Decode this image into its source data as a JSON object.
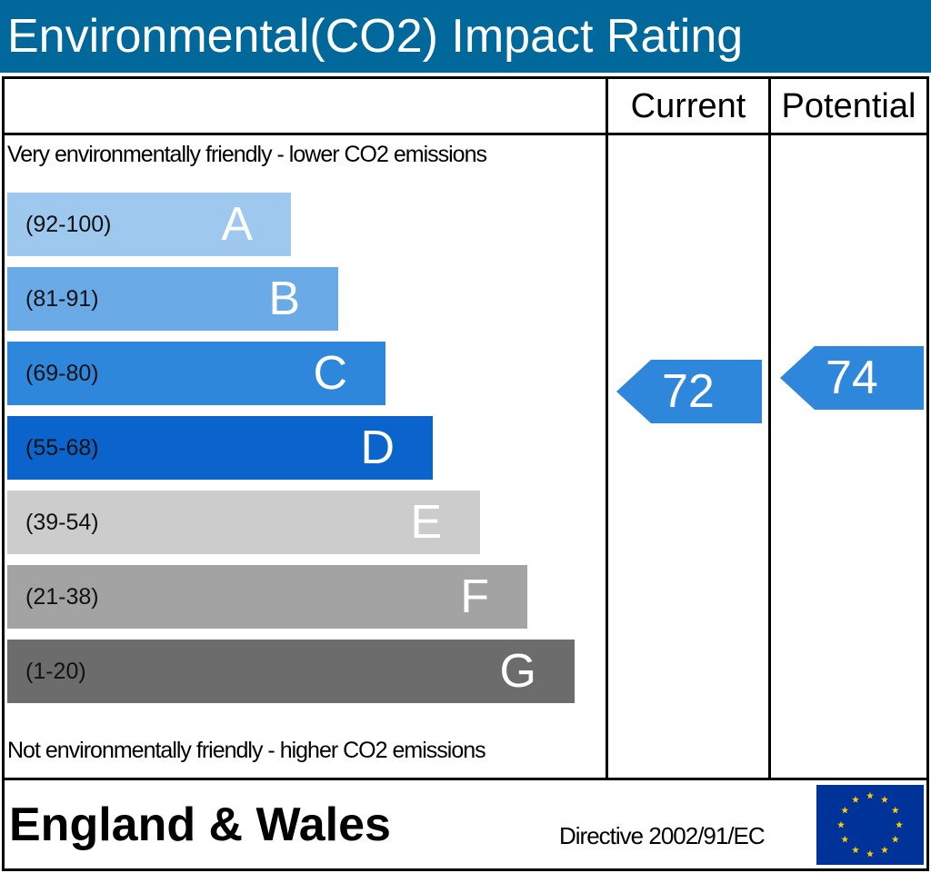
{
  "title": "Environmental(CO2) Impact Rating",
  "header": {
    "current_label": "Current",
    "potential_label": "Potential"
  },
  "notes": {
    "top": "Very environmentally friendly - lower CO2 emissions",
    "bottom": "Not environmentally friendly - higher CO2 emissions"
  },
  "chart_data": {
    "type": "bar",
    "title": "Environmental(CO2) Impact Rating",
    "bands": [
      {
        "letter": "A",
        "range": "(92-100)",
        "color": "#9ec8ee"
      },
      {
        "letter": "B",
        "range": "(81-91)",
        "color": "#6aaae6"
      },
      {
        "letter": "C",
        "range": "(69-80)",
        "color": "#2f87dc"
      },
      {
        "letter": "D",
        "range": "(55-68)",
        "color": "#0a64cc"
      },
      {
        "letter": "E",
        "range": "(39-54)",
        "color": "#cccccc"
      },
      {
        "letter": "F",
        "range": "(21-38)",
        "color": "#a3a3a3"
      },
      {
        "letter": "G",
        "range": "(1-20)",
        "color": "#6c6c6c"
      }
    ],
    "current": {
      "value": 72,
      "band": "C",
      "color": "#2f87dc"
    },
    "potential": {
      "value": 74,
      "band": "C",
      "color": "#2f87dc"
    }
  },
  "footer": {
    "region": "England & Wales",
    "directive": "Directive 2002/91/EC",
    "flag_icon": "eu-flag-icon"
  }
}
